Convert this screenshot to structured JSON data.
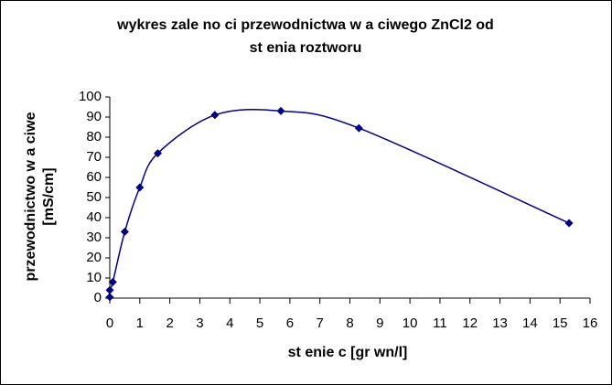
{
  "chart_data": {
    "type": "scatter",
    "title": [
      "wykres zale  no  ci przewodnictwa w a  ciwego ZnCl2 od",
      "st    enia roztworu"
    ],
    "x_label": "st    enie c [gr   wn/l]",
    "y_label": [
      "przewodnictwo w a  ciwe",
      "[mS/cm]"
    ],
    "series": [
      {
        "color": "#000080",
        "x": [
          0,
          0,
          0.1,
          0.5,
          1,
          1.6,
          3.5,
          5.7,
          8.3,
          15.3
        ],
        "values": [
          0.5,
          4,
          8,
          33,
          55,
          72,
          91,
          93,
          84.5,
          37.3
        ]
      }
    ],
    "xlim": [
      0,
      16
    ],
    "xticks": [
      0,
      1,
      2,
      3,
      4,
      5,
      6,
      7,
      8,
      9,
      10,
      11,
      12,
      13,
      14,
      15,
      16
    ],
    "ylim": [
      0,
      100
    ],
    "yticks": [
      0,
      10,
      20,
      30,
      40,
      50,
      60,
      70,
      80,
      90,
      100
    ],
    "smooth_line": true
  }
}
